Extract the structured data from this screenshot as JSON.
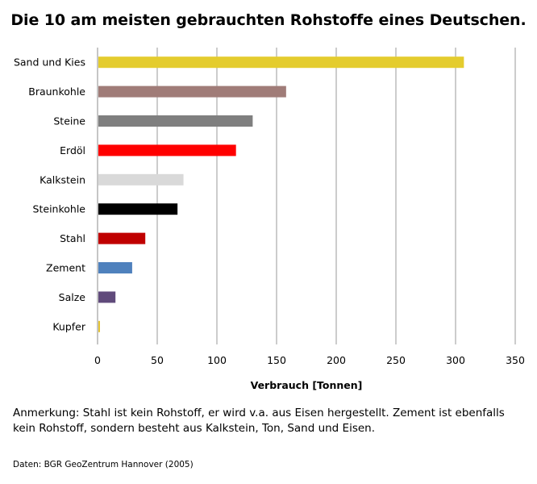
{
  "title": "Die 10 am meisten gebrauchten Rohstoffe eines Deutschen.",
  "note": "Anmerkung: Stahl ist kein Rohstoff, er wird v.a. aus Eisen hergestellt. Zement ist ebenfalls kein Rohstoff, sondern besteht aus Kalkstein, Ton, Sand und Eisen.",
  "source": "Daten: BGR GeoZentrum Hannover (2005)",
  "chart_data": {
    "type": "bar",
    "orientation": "horizontal",
    "title": "Die 10 am meisten gebrauchten Rohstoffe eines Deutschen.",
    "xlabel": "Verbrauch [Tonnen]",
    "ylabel": "",
    "xlim": [
      0,
      350
    ],
    "xticks": [
      0,
      50,
      100,
      150,
      200,
      250,
      300,
      350
    ],
    "grid": "vertical",
    "legend": "none",
    "categories": [
      "Sand und Kies",
      "Braunkohle",
      "Steine",
      "Erdöl",
      "Kalkstein",
      "Steinkohle",
      "Stahl",
      "Zement",
      "Salze",
      "Kupfer"
    ],
    "values": [
      307,
      158,
      130,
      116,
      72,
      67,
      40,
      29,
      15,
      2
    ],
    "colors": [
      "#e4cc2e",
      "#a07c78",
      "#7f7f7f",
      "#ff0000",
      "#d9d9d9",
      "#000000",
      "#c00000",
      "#4f81bd",
      "#604a7b",
      "#e4c22e"
    ]
  }
}
